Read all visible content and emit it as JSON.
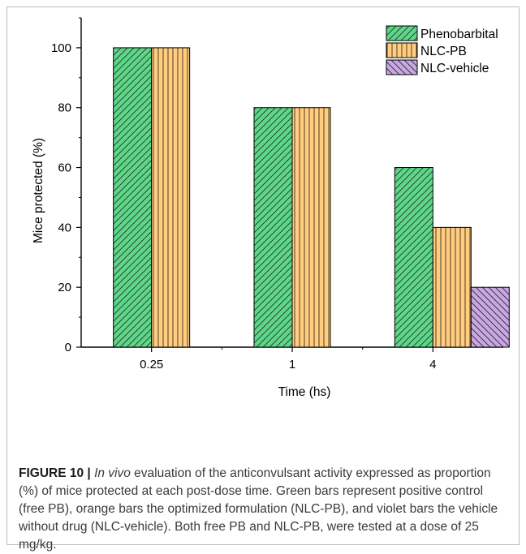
{
  "chart_data": {
    "type": "bar",
    "categories": [
      "0.25",
      "1",
      "4"
    ],
    "series": [
      {
        "name": "Phenobarbital",
        "values": [
          100,
          80,
          60
        ],
        "color": "#5fd68a",
        "pattern": "diagonal-forward"
      },
      {
        "name": "NLC-PB",
        "values": [
          100,
          80,
          40
        ],
        "color": "#ffcc80",
        "pattern": "vertical"
      },
      {
        "name": "NLC-vehicle",
        "values": [
          null,
          null,
          20
        ],
        "color": "#c7a8df",
        "pattern": "diagonal-backward"
      }
    ],
    "xlabel": "Time (hs)",
    "ylabel": "Mice protected (%)",
    "ylim": [
      0,
      110
    ],
    "yticks": [
      0,
      20,
      40,
      60,
      80,
      100
    ],
    "legend_position": "top-right",
    "grid": false
  },
  "caption": {
    "label": "FIGURE 10 |",
    "italic": "In vivo",
    "text": " evaluation of the anticonvulsant activity expressed as proportion (%) of mice protected at each post-dose time. Green bars represent positive control (free PB), orange bars the optimized formulation (NLC-PB), and violet bars the vehicle without drug (NLC-vehicle). Both free PB and NLC-PB, were tested at a dose of 25 mg/kg."
  }
}
